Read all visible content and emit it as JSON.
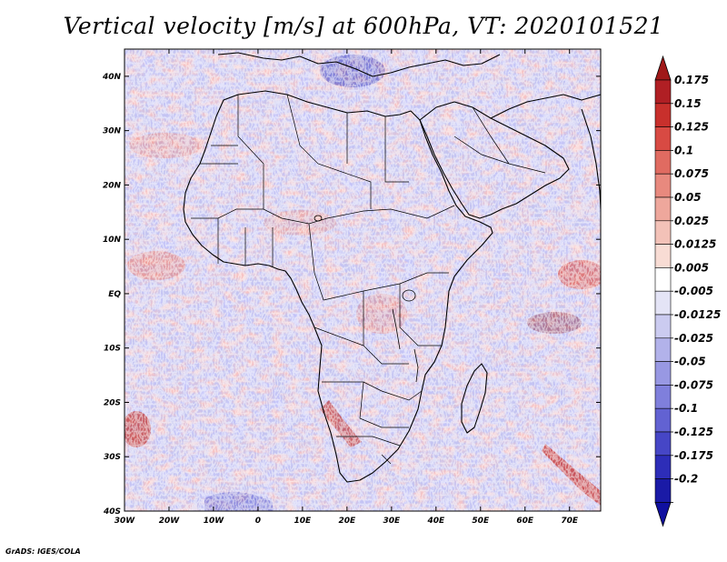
{
  "title": "Vertical velocity [m/s] at 600hPa, VT: 2020101521",
  "credit": "GrADS: IGES/COLA",
  "map": {
    "lon_range": [
      -30,
      77
    ],
    "lat_range": [
      -40,
      45
    ],
    "lon_ticks": [
      {
        "value": -30,
        "label": "30W"
      },
      {
        "value": -20,
        "label": "20W"
      },
      {
        "value": -10,
        "label": "10W"
      },
      {
        "value": 0,
        "label": "0"
      },
      {
        "value": 10,
        "label": "10E"
      },
      {
        "value": 20,
        "label": "20E"
      },
      {
        "value": 30,
        "label": "30E"
      },
      {
        "value": 40,
        "label": "40E"
      },
      {
        "value": 50,
        "label": "50E"
      },
      {
        "value": 60,
        "label": "60E"
      },
      {
        "value": 70,
        "label": "70E"
      }
    ],
    "lat_ticks": [
      {
        "value": 40,
        "label": "40N"
      },
      {
        "value": 30,
        "label": "30N"
      },
      {
        "value": 20,
        "label": "20N"
      },
      {
        "value": 10,
        "label": "10N"
      },
      {
        "value": 0,
        "label": "EQ"
      },
      {
        "value": -10,
        "label": "10S"
      },
      {
        "value": -20,
        "label": "20S"
      },
      {
        "value": -30,
        "label": "30S"
      },
      {
        "value": -40,
        "label": "40S"
      }
    ]
  },
  "colorbar": {
    "levels": [
      "0.175",
      "0.15",
      "0.125",
      "0.1",
      "0.075",
      "0.05",
      "0.025",
      "0.0125",
      "0.005",
      "-0.005",
      "-0.0125",
      "-0.025",
      "-0.05",
      "-0.075",
      "-0.1",
      "-0.125",
      "-0.175",
      "-0.2"
    ],
    "colors": [
      "#b01f24",
      "#c8302c",
      "#d84a43",
      "#e06b61",
      "#e8897e",
      "#eea79c",
      "#f3c2b8",
      "#f8dcd4",
      "#ffffff",
      "#e4e4f6",
      "#cbcbf0",
      "#b2b2ea",
      "#9898e3",
      "#7f7fdc",
      "#6262d2",
      "#4646c6",
      "#2d2db8",
      "#1a1aa6"
    ],
    "top_arrow_color": "#a01818",
    "bottom_arrow_color": "#1010a0"
  },
  "colors": {
    "ocean_blue": "#b9b9ee",
    "ocean_pink": "#f3c8c4",
    "land_mix": "#d8c8e6",
    "coast": "#000000"
  }
}
